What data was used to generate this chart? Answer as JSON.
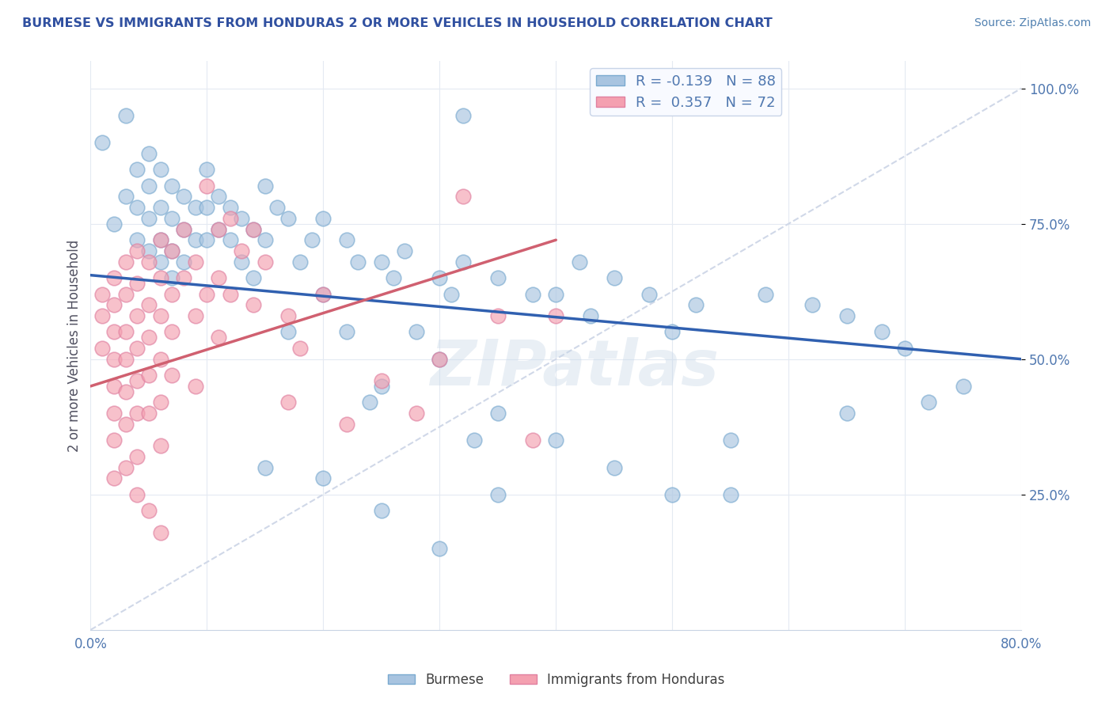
{
  "title": "BURMESE VS IMMIGRANTS FROM HONDURAS 2 OR MORE VEHICLES IN HOUSEHOLD CORRELATION CHART",
  "source": "Source: ZipAtlas.com",
  "xlabel_blue": "Burmese",
  "xlabel_pink": "Immigrants from Honduras",
  "ylabel": "2 or more Vehicles in Household",
  "blue_R": -0.139,
  "blue_N": 88,
  "pink_R": 0.357,
  "pink_N": 72,
  "blue_color": "#a8c4e0",
  "pink_color": "#f4a0b0",
  "blue_line_color": "#3060b0",
  "pink_line_color": "#d06070",
  "ref_line_color": "#d0d8e8",
  "xlim": [
    0.0,
    0.8
  ],
  "ylim": [
    0.0,
    1.05
  ],
  "xticks": [
    0.0,
    0.1,
    0.2,
    0.3,
    0.4,
    0.5,
    0.6,
    0.7,
    0.8
  ],
  "xticklabels": [
    "0.0%",
    "",
    "",
    "",
    "",
    "",
    "",
    "",
    "80.0%"
  ],
  "yticks_right": [
    0.25,
    0.5,
    0.75,
    1.0
  ],
  "yticklabels_right": [
    "25.0%",
    "50.0%",
    "75.0%",
    "100.0%"
  ],
  "blue_trend_x": [
    0.0,
    0.8
  ],
  "blue_trend_y": [
    0.655,
    0.5
  ],
  "pink_trend_x": [
    0.0,
    0.4
  ],
  "pink_trend_y": [
    0.45,
    0.72
  ],
  "ref_line_x": [
    0.0,
    0.8
  ],
  "ref_line_y": [
    0.0,
    1.0
  ],
  "blue_scatter": [
    [
      0.01,
      0.9
    ],
    [
      0.02,
      0.75
    ],
    [
      0.03,
      0.95
    ],
    [
      0.03,
      0.8
    ],
    [
      0.04,
      0.85
    ],
    [
      0.04,
      0.78
    ],
    [
      0.04,
      0.72
    ],
    [
      0.05,
      0.88
    ],
    [
      0.05,
      0.82
    ],
    [
      0.05,
      0.76
    ],
    [
      0.05,
      0.7
    ],
    [
      0.06,
      0.85
    ],
    [
      0.06,
      0.78
    ],
    [
      0.06,
      0.72
    ],
    [
      0.06,
      0.68
    ],
    [
      0.07,
      0.82
    ],
    [
      0.07,
      0.76
    ],
    [
      0.07,
      0.7
    ],
    [
      0.07,
      0.65
    ],
    [
      0.08,
      0.8
    ],
    [
      0.08,
      0.74
    ],
    [
      0.08,
      0.68
    ],
    [
      0.09,
      0.78
    ],
    [
      0.09,
      0.72
    ],
    [
      0.1,
      0.85
    ],
    [
      0.1,
      0.78
    ],
    [
      0.1,
      0.72
    ],
    [
      0.11,
      0.8
    ],
    [
      0.11,
      0.74
    ],
    [
      0.12,
      0.78
    ],
    [
      0.12,
      0.72
    ],
    [
      0.13,
      0.76
    ],
    [
      0.13,
      0.68
    ],
    [
      0.14,
      0.74
    ],
    [
      0.14,
      0.65
    ],
    [
      0.15,
      0.82
    ],
    [
      0.15,
      0.72
    ],
    [
      0.16,
      0.78
    ],
    [
      0.17,
      0.76
    ],
    [
      0.17,
      0.55
    ],
    [
      0.18,
      0.68
    ],
    [
      0.19,
      0.72
    ],
    [
      0.2,
      0.76
    ],
    [
      0.2,
      0.62
    ],
    [
      0.22,
      0.72
    ],
    [
      0.22,
      0.55
    ],
    [
      0.23,
      0.68
    ],
    [
      0.24,
      0.42
    ],
    [
      0.25,
      0.68
    ],
    [
      0.25,
      0.45
    ],
    [
      0.26,
      0.65
    ],
    [
      0.27,
      0.7
    ],
    [
      0.28,
      0.55
    ],
    [
      0.3,
      0.65
    ],
    [
      0.3,
      0.5
    ],
    [
      0.31,
      0.62
    ],
    [
      0.32,
      0.95
    ],
    [
      0.32,
      0.68
    ],
    [
      0.33,
      0.35
    ],
    [
      0.35,
      0.65
    ],
    [
      0.35,
      0.4
    ],
    [
      0.38,
      0.62
    ],
    [
      0.4,
      0.62
    ],
    [
      0.42,
      0.68
    ],
    [
      0.43,
      0.58
    ],
    [
      0.45,
      0.65
    ],
    [
      0.48,
      0.62
    ],
    [
      0.5,
      0.55
    ],
    [
      0.52,
      0.6
    ],
    [
      0.55,
      0.35
    ],
    [
      0.58,
      0.62
    ],
    [
      0.62,
      0.6
    ],
    [
      0.65,
      0.58
    ],
    [
      0.68,
      0.55
    ],
    [
      0.7,
      0.52
    ],
    [
      0.5,
      0.25
    ],
    [
      0.55,
      0.25
    ],
    [
      0.65,
      0.4
    ],
    [
      0.72,
      0.42
    ],
    [
      0.75,
      0.45
    ],
    [
      0.4,
      0.35
    ],
    [
      0.35,
      0.25
    ],
    [
      0.45,
      0.3
    ],
    [
      0.3,
      0.15
    ],
    [
      0.25,
      0.22
    ],
    [
      0.2,
      0.28
    ],
    [
      0.15,
      0.3
    ]
  ],
  "pink_scatter": [
    [
      0.01,
      0.62
    ],
    [
      0.01,
      0.58
    ],
    [
      0.01,
      0.52
    ],
    [
      0.02,
      0.65
    ],
    [
      0.02,
      0.6
    ],
    [
      0.02,
      0.55
    ],
    [
      0.02,
      0.5
    ],
    [
      0.02,
      0.45
    ],
    [
      0.02,
      0.4
    ],
    [
      0.02,
      0.35
    ],
    [
      0.02,
      0.28
    ],
    [
      0.03,
      0.68
    ],
    [
      0.03,
      0.62
    ],
    [
      0.03,
      0.55
    ],
    [
      0.03,
      0.5
    ],
    [
      0.03,
      0.44
    ],
    [
      0.03,
      0.38
    ],
    [
      0.03,
      0.3
    ],
    [
      0.04,
      0.7
    ],
    [
      0.04,
      0.64
    ],
    [
      0.04,
      0.58
    ],
    [
      0.04,
      0.52
    ],
    [
      0.04,
      0.46
    ],
    [
      0.04,
      0.4
    ],
    [
      0.04,
      0.32
    ],
    [
      0.04,
      0.25
    ],
    [
      0.05,
      0.68
    ],
    [
      0.05,
      0.6
    ],
    [
      0.05,
      0.54
    ],
    [
      0.05,
      0.47
    ],
    [
      0.05,
      0.4
    ],
    [
      0.05,
      0.22
    ],
    [
      0.06,
      0.72
    ],
    [
      0.06,
      0.65
    ],
    [
      0.06,
      0.58
    ],
    [
      0.06,
      0.5
    ],
    [
      0.06,
      0.42
    ],
    [
      0.06,
      0.34
    ],
    [
      0.06,
      0.18
    ],
    [
      0.07,
      0.7
    ],
    [
      0.07,
      0.62
    ],
    [
      0.07,
      0.55
    ],
    [
      0.07,
      0.47
    ],
    [
      0.08,
      0.74
    ],
    [
      0.08,
      0.65
    ],
    [
      0.09,
      0.68
    ],
    [
      0.09,
      0.58
    ],
    [
      0.09,
      0.45
    ],
    [
      0.1,
      0.82
    ],
    [
      0.1,
      0.62
    ],
    [
      0.11,
      0.74
    ],
    [
      0.11,
      0.65
    ],
    [
      0.11,
      0.54
    ],
    [
      0.12,
      0.76
    ],
    [
      0.12,
      0.62
    ],
    [
      0.13,
      0.7
    ],
    [
      0.14,
      0.74
    ],
    [
      0.14,
      0.6
    ],
    [
      0.15,
      0.68
    ],
    [
      0.17,
      0.58
    ],
    [
      0.17,
      0.42
    ],
    [
      0.18,
      0.52
    ],
    [
      0.2,
      0.62
    ],
    [
      0.22,
      0.38
    ],
    [
      0.25,
      0.46
    ],
    [
      0.28,
      0.4
    ],
    [
      0.3,
      0.5
    ],
    [
      0.32,
      0.8
    ],
    [
      0.35,
      0.58
    ],
    [
      0.38,
      0.35
    ],
    [
      0.4,
      0.58
    ]
  ],
  "watermark": "ZIPatlas",
  "legend_box_color": "#f8faff",
  "legend_border_color": "#c8d4e8",
  "title_color": "#3050a0",
  "source_color": "#5080b0",
  "axis_label_color": "#505060",
  "tick_color": "#5078b0",
  "grid_color": "#e4eaf2"
}
